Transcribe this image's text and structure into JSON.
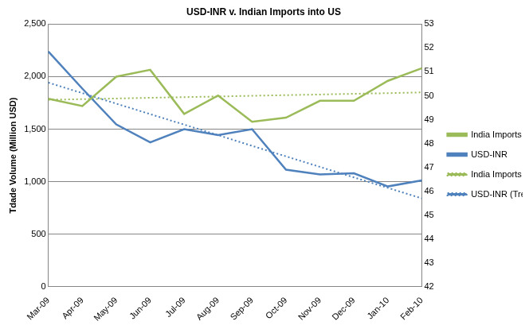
{
  "chart_data": {
    "type": "line",
    "title": "USD-INR v. Indian Imports into US",
    "y_label": "Tdade Volume (Million USD)",
    "categories": [
      "Mar-09",
      "Apr-09",
      "May-09",
      "Jun-09",
      "Jul-09",
      "Aug-09",
      "Sep-09",
      "Oct-09",
      "Nov-09",
      "Dec-09",
      "Jan-10",
      "Feb-10"
    ],
    "series": [
      {
        "name": "India Imports",
        "color": "#9bbb59",
        "line_style": "solid",
        "marker": "none",
        "axis": "y",
        "values": [
          1790,
          1720,
          2000,
          2065,
          1645,
          1820,
          1570,
          1610,
          1770,
          1770,
          1960,
          2080
        ]
      },
      {
        "name": "USD-INR",
        "color": "#4f81bd",
        "line_style": "solid",
        "marker": "none",
        "axis": "y2",
        "values": [
          51.85,
          50.3,
          48.8,
          48.05,
          48.6,
          48.35,
          48.6,
          46.9,
          46.7,
          46.75,
          46.2,
          46.45
        ]
      },
      {
        "name": "India Imports (Trend)",
        "color": "#9bbb59",
        "line_style": "dotted",
        "marker": "none",
        "axis": "y",
        "values": [
          1780,
          1786,
          1792,
          1799,
          1805,
          1811,
          1818,
          1824,
          1830,
          1837,
          1843,
          1850
        ]
      },
      {
        "name": "USD-INR (Trend)",
        "color": "#4f81bd",
        "line_style": "dotted",
        "marker": "none",
        "axis": "y2",
        "values": [
          50.55,
          50.11,
          49.67,
          49.23,
          48.79,
          48.35,
          47.9,
          47.46,
          47.02,
          46.58,
          46.14,
          45.7
        ]
      }
    ],
    "ylim": [
      0,
      2500
    ],
    "yticks": [
      0,
      500,
      {
        "value": 1000,
        "label": "1,000"
      },
      {
        "value": 1500,
        "label": "1,500"
      },
      {
        "value": 2000,
        "label": "2,000"
      },
      {
        "value": 2500,
        "label": "2,500"
      }
    ],
    "y2lim": [
      42,
      53
    ],
    "y2ticks": [
      42,
      43,
      44,
      45,
      46,
      47,
      48,
      49,
      50,
      51,
      52,
      53
    ],
    "grid": true,
    "legend": "right"
  }
}
